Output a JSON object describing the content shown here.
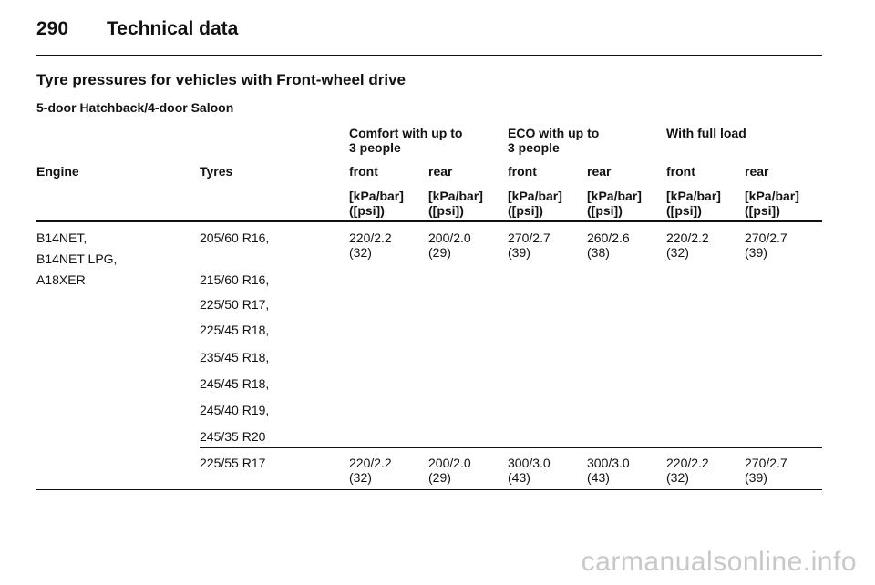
{
  "page": {
    "number": "290",
    "title": "Technical data"
  },
  "section_title": "Tyre pressures for vehicles with Front-wheel drive",
  "subsection_title": "5-door Hatchback/4-door Saloon",
  "table": {
    "groups": [
      {
        "line1": "Comfort with up to",
        "line2": "3 people"
      },
      {
        "line1": "ECO with up to",
        "line2": "3 people"
      },
      {
        "line1": "With full load",
        "line2": ""
      }
    ],
    "col_headers": [
      "Engine",
      "Tyres",
      "front",
      "rear",
      "front",
      "rear",
      "front",
      "rear"
    ],
    "unit_line1": "[kPa/bar]",
    "unit_line2": "([psi])",
    "rows": [
      {
        "engines": [
          "B14NET,",
          "B14NET LPG,",
          "A18XER"
        ],
        "tyres": [
          "205/60 R16,",
          "215/60 R16,",
          "225/50 R17,",
          "225/45 R18,",
          "235/45 R18,",
          "245/45 R18,",
          "245/40 R19,",
          "245/35 R20"
        ],
        "values": [
          {
            "kpa": "220/2.2",
            "psi": "(32)"
          },
          {
            "kpa": "200/2.0",
            "psi": "(29)"
          },
          {
            "kpa": "270/2.7",
            "psi": "(39)"
          },
          {
            "kpa": "260/2.6",
            "psi": "(38)"
          },
          {
            "kpa": "220/2.2",
            "psi": "(32)"
          },
          {
            "kpa": "270/2.7",
            "psi": "(39)"
          }
        ]
      },
      {
        "tyres": [
          "225/55 R17"
        ],
        "values": [
          {
            "kpa": "220/2.2",
            "psi": "(32)"
          },
          {
            "kpa": "200/2.0",
            "psi": "(29)"
          },
          {
            "kpa": "300/3.0",
            "psi": "(43)"
          },
          {
            "kpa": "300/3.0",
            "psi": "(43)"
          },
          {
            "kpa": "220/2.2",
            "psi": "(32)"
          },
          {
            "kpa": "270/2.7",
            "psi": "(39)"
          }
        ]
      }
    ]
  },
  "watermark": "carmanualsonline.info"
}
